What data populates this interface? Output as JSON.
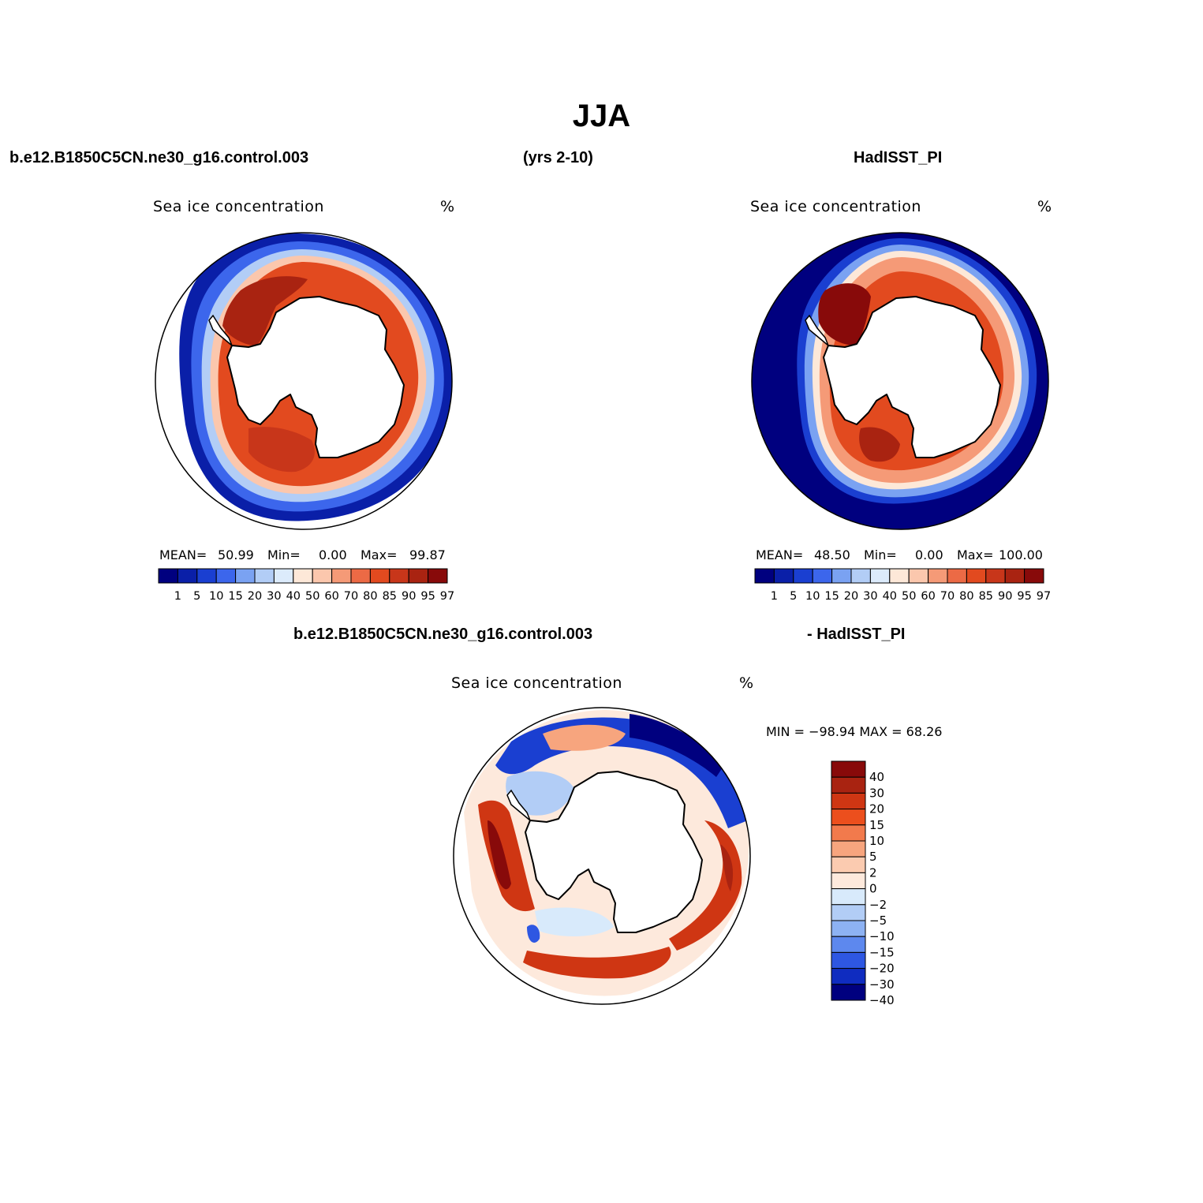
{
  "figure": {
    "title": "JJA",
    "top_left_header": "b.e12.B1850C5CN.ne30_g16.control.003",
    "top_center_header": "(yrs 2-10)",
    "top_right_header": "HadISST_PI",
    "bottom_header_left": "b.e12.B1850C5CN.ne30_g16.control.003",
    "bottom_header_right": "- HadISST_PI"
  },
  "panels": {
    "model": {
      "variable": "Sea ice concentration",
      "units": "%",
      "mean_label": "MEAN=",
      "mean_value": "50.99",
      "min_label": "Min=",
      "min_value": "0.00",
      "max_label": "Max=",
      "max_value": "99.87"
    },
    "obs": {
      "variable": "Sea ice concentration",
      "units": "%",
      "mean_label": "MEAN=",
      "mean_value": "48.50",
      "min_label": "Min=",
      "min_value": "0.00",
      "max_label": "Max=",
      "max_value": "100.00"
    },
    "diff": {
      "variable": "Sea ice concentration",
      "units": "%",
      "minmax_text": "MIN = −98.94 MAX =   68.26"
    }
  },
  "colorbars": {
    "concentration": {
      "labels": [
        "1",
        "5",
        "10",
        "15",
        "20",
        "30",
        "40",
        "50",
        "60",
        "70",
        "80",
        "85",
        "90",
        "95",
        "97"
      ],
      "colors": [
        "#00007f",
        "#0a1fa8",
        "#1a3fd1",
        "#3c66ec",
        "#7aa2f2",
        "#b2cdf6",
        "#dcebfb",
        "#fde8d8",
        "#fbc7ad",
        "#f59a77",
        "#ec6a45",
        "#e24a1f",
        "#c8361a",
        "#a92311",
        "#880a0a"
      ]
    },
    "difference": {
      "labels": [
        "40",
        "30",
        "20",
        "15",
        "10",
        "5",
        "2",
        "0",
        "−2",
        "−5",
        "−10",
        "−15",
        "−20",
        "−30",
        "−40"
      ],
      "colors": [
        "#880a0a",
        "#a92311",
        "#cf3613",
        "#ec4f1d",
        "#f27a4c",
        "#f7a57e",
        "#fbcbb0",
        "#fde9dc",
        "#d8eafb",
        "#b2cdf6",
        "#8db2f3",
        "#5d88ee",
        "#2e57e2",
        "#0f2cc0",
        "#00007f"
      ]
    }
  },
  "map_colors": {
    "ocean_edge": "#00007f",
    "land": "#ffffff",
    "coast": "#000000"
  }
}
